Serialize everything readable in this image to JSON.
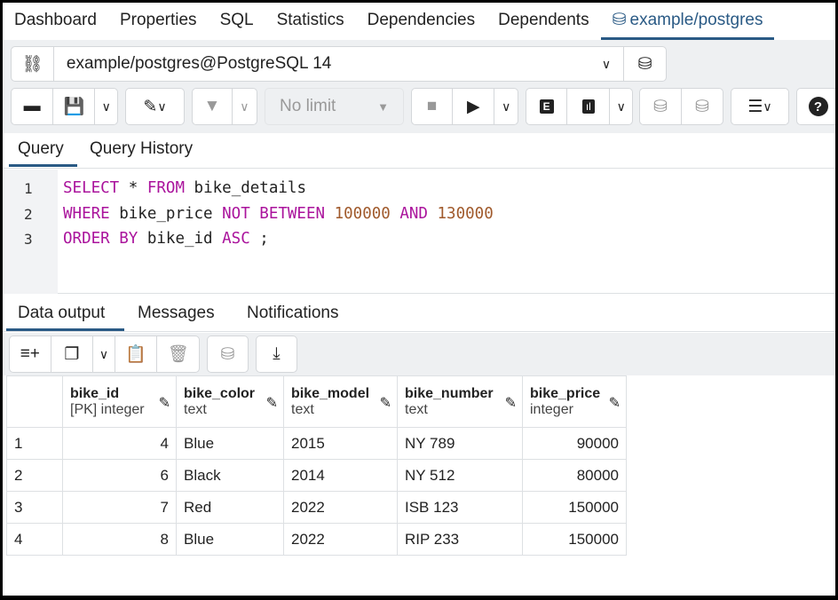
{
  "top_tabs": [
    "Dashboard",
    "Properties",
    "SQL",
    "Statistics",
    "Dependencies",
    "Dependents",
    "example/postgres"
  ],
  "connection": {
    "value": "example/postgres@PostgreSQL 14",
    "icon": "disconnect-icon"
  },
  "toolbar": {
    "limit": "No limit",
    "explain": "E"
  },
  "query_tabs": [
    "Query",
    "Query History"
  ],
  "editor": {
    "lines": [
      {
        "n": "1",
        "tokens": [
          [
            "kw",
            "SELECT"
          ],
          [
            "",
            "* "
          ],
          [
            "kw",
            "FROM"
          ],
          [
            "",
            "bike_details"
          ]
        ]
      },
      {
        "n": "2",
        "tokens": [
          [
            "kw",
            "WHERE"
          ],
          [
            "",
            "bike_price "
          ],
          [
            "kw",
            "NOT BETWEEN"
          ],
          [
            "num",
            "100000"
          ],
          [
            "kw",
            "AND"
          ],
          [
            "num",
            "130000"
          ]
        ]
      },
      {
        "n": "3",
        "tokens": [
          [
            "kw",
            "ORDER BY"
          ],
          [
            "",
            "bike_id "
          ],
          [
            "kw",
            "ASC"
          ],
          [
            "",
            ";"
          ]
        ]
      }
    ]
  },
  "output_tabs": [
    "Data output",
    "Messages",
    "Notifications"
  ],
  "colors": {
    "accent": "#2a5a85",
    "keyword": "#aa139c",
    "number": "#a05a2c"
  },
  "table": {
    "columns": [
      {
        "name": "bike_id",
        "type": "[PK] integer"
      },
      {
        "name": "bike_color",
        "type": "text"
      },
      {
        "name": "bike_model",
        "type": "text"
      },
      {
        "name": "bike_number",
        "type": "text"
      },
      {
        "name": "bike_price",
        "type": "integer"
      }
    ],
    "rows": [
      [
        "1",
        "4",
        "Blue",
        "2015",
        "NY 789",
        "90000"
      ],
      [
        "2",
        "6",
        "Black",
        "2014",
        "NY 512",
        "80000"
      ],
      [
        "3",
        "7",
        "Red",
        "2022",
        "ISB 123",
        "150000"
      ],
      [
        "4",
        "8",
        "Blue",
        "2022",
        "RIP 233",
        "150000"
      ]
    ]
  }
}
